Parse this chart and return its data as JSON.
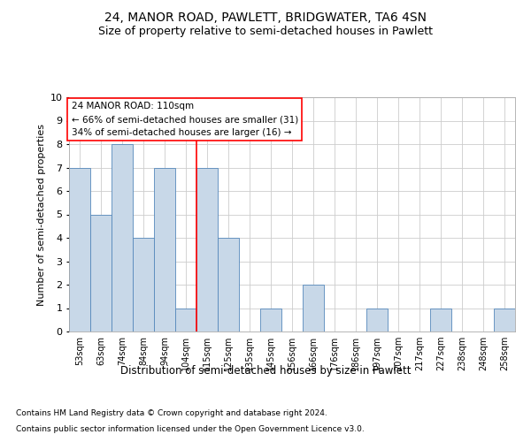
{
  "title1": "24, MANOR ROAD, PAWLETT, BRIDGWATER, TA6 4SN",
  "title2": "Size of property relative to semi-detached houses in Pawlett",
  "xlabel": "Distribution of semi-detached houses by size in Pawlett",
  "ylabel": "Number of semi-detached properties",
  "bins": [
    "53sqm",
    "63sqm",
    "74sqm",
    "84sqm",
    "94sqm",
    "104sqm",
    "115sqm",
    "125sqm",
    "135sqm",
    "145sqm",
    "156sqm",
    "166sqm",
    "176sqm",
    "186sqm",
    "197sqm",
    "207sqm",
    "217sqm",
    "227sqm",
    "238sqm",
    "248sqm",
    "258sqm"
  ],
  "values": [
    7,
    5,
    8,
    4,
    7,
    1,
    7,
    4,
    0,
    1,
    0,
    2,
    0,
    0,
    1,
    0,
    0,
    1,
    0,
    0,
    1
  ],
  "bar_color": "#c8d8e8",
  "bar_edge_color": "#5588bb",
  "grid_color": "#cccccc",
  "annotation_box_text": "24 MANOR ROAD: 110sqm\n← 66% of semi-detached houses are smaller (31)\n34% of semi-detached houses are larger (16) →",
  "red_line_x": 5.5,
  "footer1": "Contains HM Land Registry data © Crown copyright and database right 2024.",
  "footer2": "Contains public sector information licensed under the Open Government Licence v3.0.",
  "ylim": [
    0,
    10
  ],
  "yticks": [
    0,
    1,
    2,
    3,
    4,
    5,
    6,
    7,
    8,
    9,
    10
  ],
  "title1_fontsize": 10,
  "title2_fontsize": 9,
  "annotation_fontsize": 7.5,
  "ylabel_fontsize": 8,
  "xlabel_fontsize": 8.5,
  "footer_fontsize": 6.5,
  "tick_fontsize": 7,
  "ytick_fontsize": 8
}
